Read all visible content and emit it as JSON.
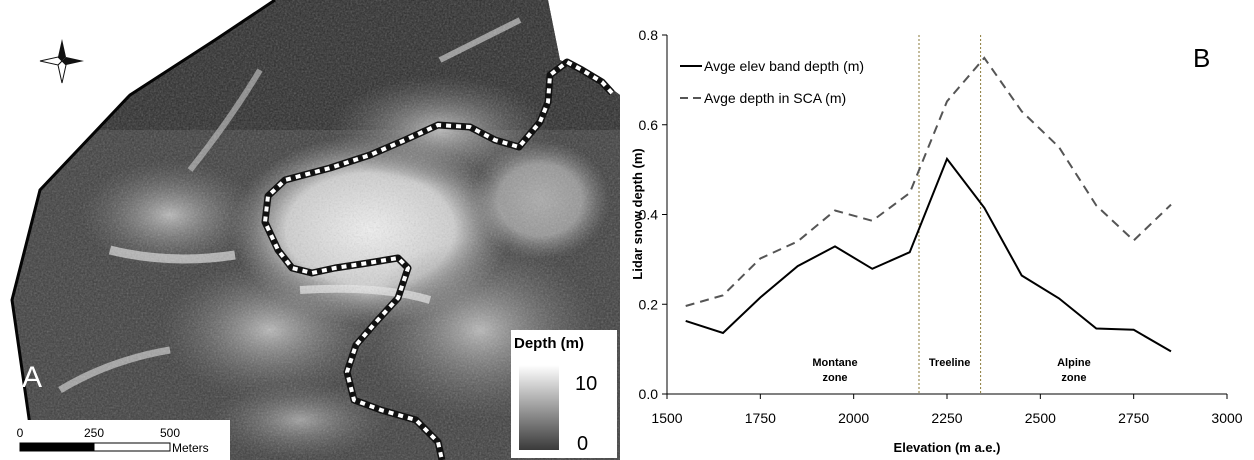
{
  "panel_a": {
    "letter": "A",
    "compass": {
      "n": "N",
      "s": "S",
      "e": "E",
      "w": "W"
    },
    "legend": {
      "title": "Depth (m)",
      "max": "10",
      "min": "0"
    },
    "scalebar": {
      "ticks": [
        "0",
        "250",
        "500"
      ],
      "unit": "Meters"
    },
    "colors": {
      "boundary_dash": "#ffffff",
      "boundary_base": "#111111"
    }
  },
  "chart_data": {
    "type": "line",
    "panel_letter": "B",
    "xlabel": "Elevation (m a.e.)",
    "ylabel": "Lidar snow depth (m)",
    "xlim": [
      1500,
      3000
    ],
    "ylim": [
      0,
      0.8
    ],
    "xticks": [
      "1500",
      "1750",
      "2000",
      "2250",
      "2500",
      "2750",
      "3000"
    ],
    "yticks": [
      "0.0",
      "0.2",
      "0.4",
      "0.6",
      "0.8"
    ],
    "grid": false,
    "legend_position": "top-left",
    "series": [
      {
        "name": "Avge elev band depth (m)",
        "style": "solid",
        "color": "#000000",
        "x": [
          1550,
          1650,
          1750,
          1850,
          1950,
          2050,
          2150,
          2250,
          2350,
          2450,
          2550,
          2650,
          2750,
          2850
        ],
        "y": [
          0.163,
          0.136,
          0.215,
          0.285,
          0.329,
          0.279,
          0.316,
          0.524,
          0.415,
          0.264,
          0.213,
          0.146,
          0.143,
          0.095
        ]
      },
      {
        "name": "Avge depth in SCA (m)",
        "style": "dashed",
        "color": "#555555",
        "x": [
          1550,
          1650,
          1750,
          1850,
          1950,
          2050,
          2150,
          2250,
          2350,
          2450,
          2550,
          2650,
          2750,
          2850
        ],
        "y": [
          0.196,
          0.22,
          0.302,
          0.34,
          0.409,
          0.386,
          0.448,
          0.652,
          0.749,
          0.63,
          0.55,
          0.42,
          0.342,
          0.422
        ]
      }
    ],
    "zone_boundaries": [
      2175,
      2340
    ],
    "zone_labels": [
      {
        "lines": [
          "Montane",
          "zone"
        ],
        "x": 1950
      },
      {
        "lines": [
          "Treeline"
        ],
        "x": 2257
      },
      {
        "lines": [
          "Alpine",
          "zone"
        ],
        "x": 2590
      }
    ]
  }
}
